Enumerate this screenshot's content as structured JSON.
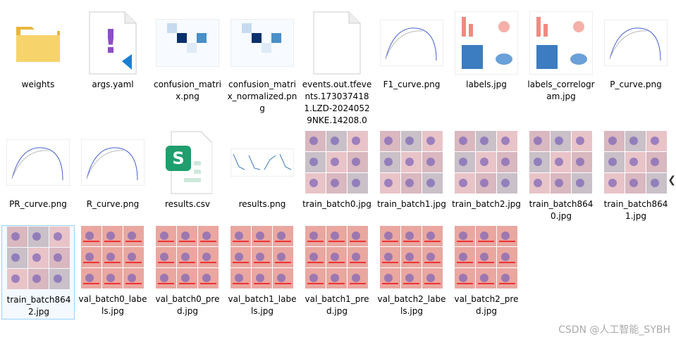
{
  "files": [
    {
      "name": "weights"
    },
    {
      "name": "args.yaml"
    },
    {
      "name": "confusion_matrix.png"
    },
    {
      "name": "confusion_matrix_normalized.png"
    },
    {
      "name": "events.out.tfevents.1730374181.LZD-20240529NKE.14208.0"
    },
    {
      "name": "F1_curve.png"
    },
    {
      "name": "labels.jpg"
    },
    {
      "name": "labels_correlogram.jpg"
    },
    {
      "name": "P_curve.png"
    },
    {
      "name": "PR_curve.png"
    },
    {
      "name": "R_curve.png"
    },
    {
      "name": "results.csv"
    },
    {
      "name": "results.png"
    },
    {
      "name": "train_batch0.jpg"
    },
    {
      "name": "train_batch1.jpg"
    },
    {
      "name": "train_batch2.jpg"
    },
    {
      "name": "train_batch8640.jpg"
    },
    {
      "name": "train_batch8641.jpg"
    },
    {
      "name": "train_batch8642.jpg"
    },
    {
      "name": "val_batch0_labels.jpg"
    },
    {
      "name": "val_batch0_pred.jpg"
    },
    {
      "name": "val_batch1_labels.jpg"
    },
    {
      "name": "val_batch1_pred.jpg"
    },
    {
      "name": "val_batch2_labels.jpg"
    },
    {
      "name": "val_batch2_pred.jpg"
    }
  ],
  "watermark": "CSDN @人工智能_SYBH"
}
